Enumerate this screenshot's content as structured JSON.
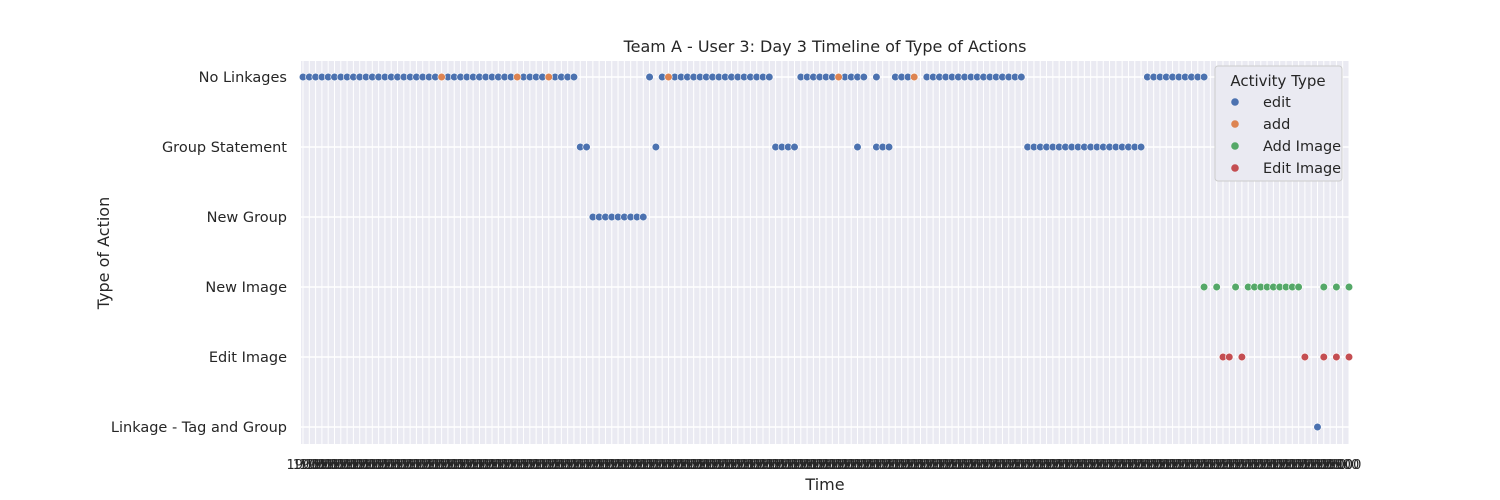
{
  "chart_data": {
    "type": "scatter",
    "title": "Team A - User 3: Day 3 Timeline of Type of Actions",
    "xlabel": "Time",
    "ylabel": "Type of Action",
    "categories": [
      "No Linkages",
      "Group Statement",
      "New Group",
      "New Image",
      "Edit Image",
      "Linkage - Tag and Group"
    ],
    "x_range": [
      0,
      166
    ],
    "x_tick_label_stub": "1900",
    "x_tick_label_end": "100",
    "grid": true,
    "legend": {
      "title": "Activity Type",
      "position": "top-right",
      "entries": [
        {
          "name": "edit",
          "color": "#4c72b0"
        },
        {
          "name": "add",
          "color": "#dd8452"
        },
        {
          "name": "Add Image",
          "color": "#55a868"
        },
        {
          "name": "Edit Image",
          "color": "#c44e52"
        }
      ]
    },
    "series": [
      {
        "name": "edit",
        "color": "#4c72b0",
        "points": [
          [
            "No Linkages",
            [
              0,
              1,
              2,
              3,
              4,
              5,
              6,
              7,
              8,
              9,
              10,
              11,
              12,
              13,
              14,
              15,
              16,
              17,
              18,
              19,
              20,
              21,
              23,
              24,
              25,
              26,
              27,
              28,
              29,
              30,
              31,
              32,
              33,
              35,
              36,
              37,
              38,
              40,
              41,
              42,
              43,
              55,
              57,
              59,
              60,
              61,
              62,
              63,
              64,
              65,
              66,
              67,
              68,
              69,
              70,
              71,
              72,
              73,
              74,
              79,
              80,
              81,
              82,
              83,
              84,
              86,
              87,
              88,
              89,
              91,
              94,
              95,
              96,
              99,
              100,
              101,
              102,
              103,
              104,
              105,
              106,
              107,
              108,
              109,
              110,
              111,
              112,
              113,
              114,
              134,
              135,
              136,
              137,
              138,
              139,
              140,
              141,
              142,
              143
            ]
          ],
          [
            "Group Statement",
            [
              44,
              45,
              56,
              75,
              76,
              77,
              78,
              88,
              91,
              92,
              93,
              115,
              116,
              117,
              118,
              119,
              120,
              121,
              122,
              123,
              124,
              125,
              126,
              127,
              128,
              129,
              130,
              131,
              132,
              133
            ]
          ],
          [
            "New Group",
            [
              46,
              47,
              48,
              49,
              50,
              51,
              52,
              53,
              54
            ]
          ],
          [
            "Linkage - Tag and Group",
            [
              161
            ]
          ]
        ]
      },
      {
        "name": "add",
        "color": "#dd8452",
        "points": [
          [
            "No Linkages",
            [
              22,
              34,
              39,
              58,
              85,
              97
            ]
          ]
        ]
      },
      {
        "name": "Add Image",
        "color": "#55a868",
        "points": [
          [
            "New Image",
            [
              143,
              145,
              148,
              150,
              151,
              152,
              153,
              154,
              155,
              156,
              157,
              158,
              162,
              164,
              166
            ]
          ]
        ]
      },
      {
        "name": "Edit Image",
        "color": "#c44e52",
        "points": [
          [
            "Edit Image",
            [
              146,
              147,
              149,
              159,
              162,
              164,
              166
            ]
          ]
        ]
      }
    ]
  }
}
